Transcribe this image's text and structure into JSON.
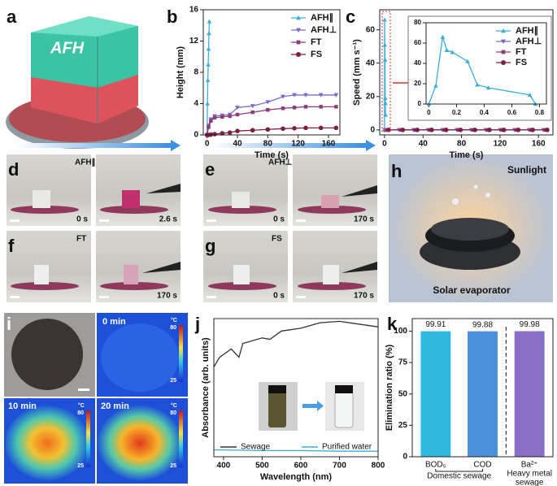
{
  "panel_labels": [
    "a",
    "b",
    "c",
    "d",
    "e",
    "f",
    "g",
    "h",
    "i",
    "j",
    "k"
  ],
  "photos": {
    "a": "AFH",
    "d": [
      "AFH∥",
      "0 s",
      "2.6 s"
    ],
    "e": [
      "AFH⊥",
      "0 s",
      "170 s"
    ],
    "f": [
      "FT",
      "170 s"
    ],
    "g": [
      "FS",
      "0 s",
      "170 s"
    ],
    "h": [
      "Sunlight",
      "Solar evaporator"
    ],
    "i": {
      "times": [
        "0 min",
        "10 min",
        "20 min"
      ],
      "unit": "°C",
      "colorbar": [
        25,
        80
      ]
    }
  },
  "chart_data": [
    {
      "type": "line",
      "xlabel": "Time (s)",
      "ylabel": "Height (mm)",
      "xlim": [
        -5,
        175
      ],
      "ylim": [
        0,
        16
      ],
      "xticks": [
        0,
        40,
        80,
        120,
        160
      ],
      "yticks": [
        0,
        4,
        8,
        12,
        16
      ],
      "legend": "upper right",
      "series": [
        {
          "name": "AFH∥",
          "color": "#3aaed8",
          "marker": "^",
          "x": [
            0,
            0.5,
            1,
            1.5,
            2,
            2.5,
            3
          ],
          "values": [
            0,
            4,
            7,
            9,
            11,
            13,
            14.5
          ]
        },
        {
          "name": "AFH⊥",
          "color": "#7a68c9",
          "marker": "v",
          "x": [
            0,
            2,
            5,
            10,
            20,
            30,
            40,
            60,
            80,
            100,
            115,
            130,
            150,
            170
          ],
          "values": [
            0,
            1.2,
            2,
            2.4,
            2.5,
            2.6,
            3.5,
            3.7,
            4.2,
            4.9,
            5.1,
            5.1,
            5.1,
            5.1
          ]
        },
        {
          "name": "FT",
          "color": "#8e3c78",
          "marker": "s",
          "x": [
            0,
            2,
            5,
            10,
            20,
            30,
            40,
            60,
            80,
            100,
            115,
            130,
            150,
            170
          ],
          "values": [
            0,
            1,
            1.8,
            2.2,
            2.3,
            2.4,
            2.6,
            2.9,
            3.2,
            3.4,
            3.5,
            3.6,
            3.6,
            3.6
          ]
        },
        {
          "name": "FS",
          "color": "#7d1f45",
          "marker": "o",
          "x": [
            0,
            2,
            5,
            10,
            20,
            30,
            40,
            60,
            80,
            100,
            115,
            130,
            150,
            170
          ],
          "values": [
            0,
            0,
            0.05,
            0.1,
            0.2,
            0.3,
            0.5,
            0.6,
            0.7,
            0.8,
            0.85,
            0.9,
            0.9,
            0.9
          ]
        }
      ]
    },
    {
      "type": "line",
      "xlabel": "Time (s)",
      "ylabel": "Speed (mm s⁻¹)",
      "xlim": [
        -5,
        175
      ],
      "ylim": [
        -3,
        72
      ],
      "xticks": [
        0,
        40,
        80,
        120,
        160
      ],
      "yticks": [
        0,
        20,
        40,
        60
      ],
      "series": [
        {
          "color": "#3aaed8",
          "marker": "^",
          "x": [
            0,
            0.1,
            0.3,
            0.5,
            0.7,
            0.8,
            1
          ],
          "values": [
            0,
            66,
            51,
            42,
            19,
            16,
            9
          ]
        },
        {
          "color": "#7a68c9",
          "marker": "v",
          "x": [
            0,
            15,
            30,
            45,
            60,
            75,
            90,
            105,
            120,
            135,
            150,
            165
          ],
          "values": [
            0,
            0,
            0,
            0,
            0,
            0,
            0,
            0,
            0,
            0,
            0,
            0
          ]
        },
        {
          "color": "#8e3c78",
          "marker": "s",
          "x": [
            2,
            17,
            32,
            47,
            62,
            77,
            92,
            107,
            122,
            137,
            152,
            167
          ],
          "values": [
            0,
            0,
            0,
            0,
            0,
            0,
            0,
            0,
            0,
            0,
            0,
            0
          ]
        },
        {
          "color": "#7d1f45",
          "marker": "o",
          "x": [
            4,
            19,
            34,
            49,
            64,
            79,
            94,
            109,
            124,
            139,
            154,
            169
          ],
          "values": [
            0,
            0,
            0,
            0,
            0,
            0,
            0,
            0,
            0,
            0,
            0,
            0
          ]
        }
      ]
    },
    {
      "type": "line",
      "xlim": [
        -0.02,
        0.85
      ],
      "ylim": [
        0,
        80
      ],
      "xticks": [
        0.0,
        0.2,
        0.4,
        0.6,
        0.8
      ],
      "yticks": [
        0,
        20,
        40,
        60,
        80
      ],
      "legend": "upper right",
      "series": [
        {
          "name": "AFH∥",
          "color": "#3aaed8",
          "marker": "^",
          "x": [
            0,
            0.05,
            0.1,
            0.13,
            0.17,
            0.28,
            0.35,
            0.43,
            0.73,
            0.77
          ],
          "values": [
            0,
            18,
            66,
            53,
            51,
            42,
            19,
            16,
            9,
            0
          ]
        },
        {
          "name": "AFH⊥",
          "color": "#7a68c9",
          "marker": "v",
          "x": [],
          "values": []
        },
        {
          "name": "FT",
          "color": "#8e3c78",
          "marker": "s",
          "x": [],
          "values": []
        },
        {
          "name": "FS",
          "color": "#7d1f45",
          "marker": "o",
          "x": [],
          "values": []
        }
      ]
    },
    {
      "type": "line",
      "xlabel": "Wavelength (nm)",
      "ylabel": "Absorbance (arb. units)",
      "xlim": [
        375,
        800
      ],
      "ylim": [
        0,
        1
      ],
      "xticks": [
        400,
        500,
        600,
        700,
        800
      ],
      "yticks": [],
      "legend": "lower center",
      "series": [
        {
          "name": "Sewage",
          "color": "#333333",
          "x": [
            375,
            390,
            420,
            440,
            450,
            500,
            520,
            550,
            600,
            650,
            700,
            750,
            800
          ],
          "values": [
            0.65,
            0.72,
            0.78,
            0.72,
            0.82,
            0.86,
            0.85,
            0.91,
            0.93,
            0.97,
            0.98,
            0.96,
            0.94
          ]
        },
        {
          "name": "Purified water",
          "color": "#3aaed8",
          "x": [
            375,
            500,
            600,
            700,
            800
          ],
          "values": [
            0.05,
            0.045,
            0.045,
            0.04,
            0.04
          ]
        }
      ]
    },
    {
      "type": "bar",
      "ylabel": "Elimination ratio (%)",
      "ylim": [
        0,
        110
      ],
      "yticks": [
        0,
        25,
        50,
        75,
        100
      ],
      "categories": [
        "BOD₅",
        "COD",
        "Ba²⁺"
      ],
      "values": [
        99.91,
        99.88,
        99.98
      ],
      "colors": [
        "#2fb8e0",
        "#4a90d9",
        "#8a6fc6"
      ],
      "group_labels": [
        [
          "Domestic sewage"
        ],
        [
          "Heavy metal",
          "sewage"
        ]
      ]
    }
  ]
}
